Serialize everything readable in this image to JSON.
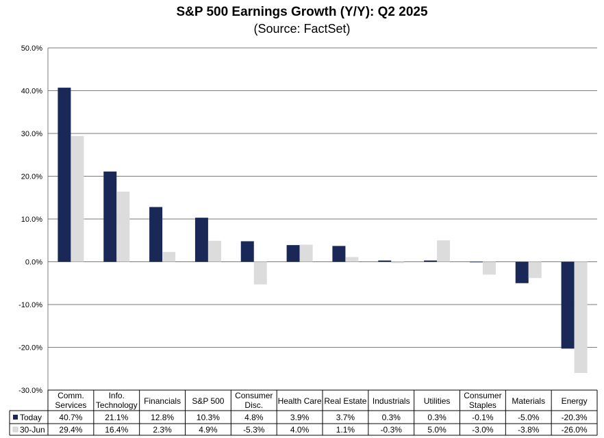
{
  "chart_data": {
    "type": "bar",
    "title": "S&P 500 Earnings Growth (Y/Y): Q2 2025",
    "subtitle": "(Source: FactSet)",
    "categories": [
      [
        "Comm.",
        "Services"
      ],
      [
        "Info.",
        "Technology"
      ],
      [
        "Financials"
      ],
      [
        "S&P 500"
      ],
      [
        "Consumer",
        "Disc."
      ],
      [
        "Health Care"
      ],
      [
        "Real Estate"
      ],
      [
        "Industrials"
      ],
      [
        "Utilities"
      ],
      [
        "Consumer",
        "Staples"
      ],
      [
        "Materials"
      ],
      [
        "Energy"
      ]
    ],
    "series": [
      {
        "name": "Today",
        "color": "#1a2857",
        "values": [
          40.7,
          21.1,
          12.8,
          10.3,
          4.8,
          3.9,
          3.7,
          0.3,
          0.3,
          -0.1,
          -5.0,
          -20.3
        ],
        "labels": [
          "40.7%",
          "21.1%",
          "12.8%",
          "10.3%",
          "4.8%",
          "3.9%",
          "3.7%",
          "0.3%",
          "0.3%",
          "-0.1%",
          "-5.0%",
          "-20.3%"
        ]
      },
      {
        "name": "30-Jun",
        "color": "#dcdcdc",
        "values": [
          29.4,
          16.4,
          2.3,
          4.9,
          -5.3,
          4.0,
          1.1,
          -0.3,
          5.0,
          -3.0,
          -3.8,
          -26.0
        ],
        "labels": [
          "29.4%",
          "16.4%",
          "2.3%",
          "4.9%",
          "-5.3%",
          "4.0%",
          "1.1%",
          "-0.3%",
          "5.0%",
          "-3.0%",
          "-3.8%",
          "-26.0%"
        ]
      }
    ],
    "ylim": [
      -30,
      50
    ],
    "yticks": [
      50,
      40,
      30,
      20,
      10,
      0,
      -10,
      -20,
      -30
    ],
    "ytick_labels": [
      "50.0%",
      "40.0%",
      "30.0%",
      "20.0%",
      "10.0%",
      "0.0%",
      "-10.0%",
      "-20.0%",
      "-30.0%"
    ],
    "grid": true,
    "legend_placement": "data-table-left"
  }
}
